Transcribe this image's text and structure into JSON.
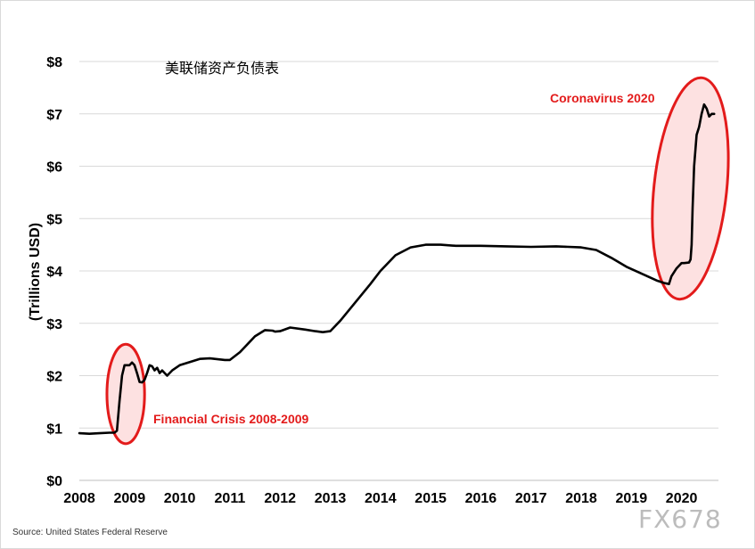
{
  "chart_data": {
    "type": "line",
    "title": "美联储资产负债表",
    "ylabel": "(Trillions USD)",
    "xlabel": "",
    "xlim": [
      2008,
      2020.7
    ],
    "ylim": [
      0,
      8
    ],
    "x_ticks": [
      {
        "value": 2008,
        "label": "2008"
      },
      {
        "value": 2009,
        "label": "2009"
      },
      {
        "value": 2010,
        "label": "2010"
      },
      {
        "value": 2011,
        "label": "2011"
      },
      {
        "value": 2012,
        "label": "2012"
      },
      {
        "value": 2013,
        "label": "2013"
      },
      {
        "value": 2014,
        "label": "2014"
      },
      {
        "value": 2015,
        "label": "2015"
      },
      {
        "value": 2016,
        "label": "2016"
      },
      {
        "value": 2017,
        "label": "2017"
      },
      {
        "value": 2018,
        "label": "2018"
      },
      {
        "value": 2019,
        "label": "2019"
      },
      {
        "value": 2020,
        "label": "2020"
      }
    ],
    "y_ticks": [
      {
        "value": 0,
        "label": "$0"
      },
      {
        "value": 1,
        "label": "$1"
      },
      {
        "value": 2,
        "label": "$2"
      },
      {
        "value": 3,
        "label": "$3"
      },
      {
        "value": 4,
        "label": "$4"
      },
      {
        "value": 5,
        "label": "$5"
      },
      {
        "value": 6,
        "label": "$6"
      },
      {
        "value": 7,
        "label": "$7"
      },
      {
        "value": 8,
        "label": "$8"
      }
    ],
    "grid": "horizontal",
    "series": [
      {
        "name": "Federal Reserve Balance Sheet",
        "color": "#000000",
        "x": [
          2008.0,
          2008.2,
          2008.4,
          2008.6,
          2008.7,
          2008.75,
          2008.8,
          2008.85,
          2008.9,
          2009.0,
          2009.05,
          2009.1,
          2009.15,
          2009.2,
          2009.25,
          2009.3,
          2009.35,
          2009.4,
          2009.45,
          2009.5,
          2009.55,
          2009.6,
          2009.65,
          2009.75,
          2009.85,
          2010.0,
          2010.2,
          2010.4,
          2010.6,
          2010.8,
          2010.9,
          2011.0,
          2011.2,
          2011.4,
          2011.5,
          2011.7,
          2011.85,
          2011.9,
          2012.0,
          2012.2,
          2012.5,
          2012.7,
          2012.85,
          2013.0,
          2013.2,
          2013.5,
          2013.8,
          2014.0,
          2014.3,
          2014.6,
          2014.9,
          2015.2,
          2015.5,
          2016.0,
          2016.5,
          2017.0,
          2017.5,
          2018.0,
          2018.3,
          2018.6,
          2018.9,
          2019.2,
          2019.5,
          2019.65,
          2019.75,
          2019.8,
          2019.9,
          2020.0,
          2020.05,
          2020.15,
          2020.18,
          2020.2,
          2020.22,
          2020.25,
          2020.3,
          2020.35,
          2020.4,
          2020.45,
          2020.5,
          2020.55,
          2020.6,
          2020.65
        ],
        "values": [
          0.9,
          0.89,
          0.9,
          0.91,
          0.91,
          0.95,
          1.5,
          2.0,
          2.2,
          2.2,
          2.25,
          2.2,
          2.05,
          1.88,
          1.87,
          1.92,
          2.05,
          2.2,
          2.18,
          2.1,
          2.15,
          2.05,
          2.1,
          2.0,
          2.1,
          2.2,
          2.26,
          2.32,
          2.33,
          2.31,
          2.3,
          2.3,
          2.45,
          2.65,
          2.75,
          2.87,
          2.86,
          2.84,
          2.85,
          2.92,
          2.88,
          2.85,
          2.83,
          2.85,
          3.05,
          3.4,
          3.75,
          4.0,
          4.3,
          4.45,
          4.5,
          4.5,
          4.48,
          4.48,
          4.47,
          4.46,
          4.47,
          4.45,
          4.4,
          4.25,
          4.08,
          3.95,
          3.82,
          3.77,
          3.75,
          3.9,
          4.05,
          4.15,
          4.15,
          4.16,
          4.22,
          4.5,
          5.2,
          6.0,
          6.6,
          6.75,
          7.0,
          7.18,
          7.1,
          6.95,
          7.0,
          7.0
        ]
      }
    ],
    "annotations": [
      {
        "text": "Financial Crisis 2008-2009",
        "color": "#e31b1b",
        "highlight_x": [
          2008.55,
          2009.3
        ],
        "highlight_y": [
          0.7,
          2.6
        ]
      },
      {
        "text": "Coronavirus 2020",
        "color": "#e31b1b",
        "highlight_x": [
          2019.45,
          2020.9
        ],
        "highlight_y": [
          3.45,
          7.7
        ]
      }
    ]
  },
  "source_note": "Source: United States Federal Reserve",
  "watermark": "FX678"
}
